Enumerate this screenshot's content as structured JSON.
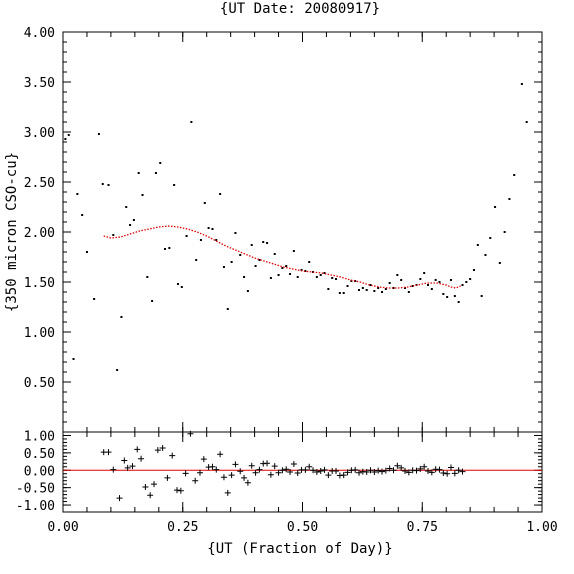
{
  "chart_data": {
    "title": "{UT Date: 20080917}",
    "xlabel": "{UT (Fraction of Day)}",
    "xlim": [
      0.0,
      1.0
    ],
    "x_tick_labels": [
      "0.00",
      "0.25",
      "0.50",
      "0.75",
      "1.00"
    ],
    "colors": {
      "points": "#000000",
      "fit": "#e00000",
      "zero_line": "#e00000",
      "axes": "#000000"
    },
    "panels": [
      {
        "name": "main",
        "type": "scatter",
        "ylabel": "{350 micron CSO-cu}",
        "ylim": [
          0.0,
          4.0
        ],
        "y_tick_labels": [
          "0.50",
          "1.00",
          "1.50",
          "2.00",
          "2.50",
          "3.00",
          "3.50",
          "4.00"
        ],
        "points": [
          [
            0.005,
            2.93
          ],
          [
            0.012,
            2.97
          ],
          [
            0.022,
            0.73
          ],
          [
            0.03,
            2.38
          ],
          [
            0.04,
            2.17
          ],
          [
            0.05,
            1.8
          ],
          [
            0.065,
            1.33
          ],
          [
            0.075,
            2.98
          ],
          [
            0.083,
            2.48
          ],
          [
            0.095,
            2.47
          ],
          [
            0.105,
            1.97
          ],
          [
            0.113,
            0.62
          ],
          [
            0.122,
            1.15
          ],
          [
            0.132,
            2.25
          ],
          [
            0.14,
            2.07
          ],
          [
            0.148,
            2.12
          ],
          [
            0.158,
            2.59
          ],
          [
            0.166,
            2.37
          ],
          [
            0.176,
            1.55
          ],
          [
            0.186,
            1.31
          ],
          [
            0.194,
            2.59
          ],
          [
            0.203,
            2.69
          ],
          [
            0.213,
            1.83
          ],
          [
            0.222,
            1.84
          ],
          [
            0.232,
            2.47
          ],
          [
            0.24,
            1.48
          ],
          [
            0.248,
            1.45
          ],
          [
            0.258,
            1.96
          ],
          [
            0.268,
            3.1
          ],
          [
            0.278,
            1.72
          ],
          [
            0.288,
            1.92
          ],
          [
            0.296,
            2.29
          ],
          [
            0.304,
            2.04
          ],
          [
            0.312,
            2.03
          ],
          [
            0.32,
            1.92
          ],
          [
            0.328,
            2.38
          ],
          [
            0.336,
            1.65
          ],
          [
            0.344,
            1.23
          ],
          [
            0.352,
            1.7
          ],
          [
            0.36,
            1.99
          ],
          [
            0.37,
            1.77
          ],
          [
            0.378,
            1.55
          ],
          [
            0.386,
            1.41
          ],
          [
            0.394,
            1.87
          ],
          [
            0.402,
            1.66
          ],
          [
            0.41,
            1.72
          ],
          [
            0.418,
            1.9
          ],
          [
            0.426,
            1.89
          ],
          [
            0.434,
            1.54
          ],
          [
            0.442,
            1.78
          ],
          [
            0.45,
            1.57
          ],
          [
            0.458,
            1.64
          ],
          [
            0.466,
            1.66
          ],
          [
            0.474,
            1.58
          ],
          [
            0.482,
            1.81
          ],
          [
            0.49,
            1.55
          ],
          [
            0.498,
            1.62
          ],
          [
            0.506,
            1.61
          ],
          [
            0.514,
            1.7
          ],
          [
            0.522,
            1.6
          ],
          [
            0.53,
            1.55
          ],
          [
            0.538,
            1.57
          ],
          [
            0.546,
            1.59
          ],
          [
            0.554,
            1.43
          ],
          [
            0.562,
            1.54
          ],
          [
            0.57,
            1.53
          ],
          [
            0.578,
            1.39
          ],
          [
            0.586,
            1.39
          ],
          [
            0.594,
            1.46
          ],
          [
            0.602,
            1.51
          ],
          [
            0.61,
            1.51
          ],
          [
            0.618,
            1.42
          ],
          [
            0.626,
            1.44
          ],
          [
            0.634,
            1.42
          ],
          [
            0.642,
            1.47
          ],
          [
            0.65,
            1.41
          ],
          [
            0.658,
            1.44
          ],
          [
            0.666,
            1.4
          ],
          [
            0.674,
            1.43
          ],
          [
            0.682,
            1.49
          ],
          [
            0.69,
            1.44
          ],
          [
            0.698,
            1.57
          ],
          [
            0.706,
            1.52
          ],
          [
            0.714,
            1.44
          ],
          [
            0.722,
            1.4
          ],
          [
            0.73,
            1.46
          ],
          [
            0.738,
            1.47
          ],
          [
            0.746,
            1.53
          ],
          [
            0.754,
            1.59
          ],
          [
            0.762,
            1.47
          ],
          [
            0.77,
            1.43
          ],
          [
            0.778,
            1.52
          ],
          [
            0.786,
            1.5
          ],
          [
            0.794,
            1.38
          ],
          [
            0.802,
            1.35
          ],
          [
            0.81,
            1.52
          ],
          [
            0.818,
            1.36
          ],
          [
            0.826,
            1.3
          ],
          [
            0.834,
            1.47
          ],
          [
            0.842,
            1.5
          ],
          [
            0.85,
            1.53
          ],
          [
            0.858,
            1.62
          ],
          [
            0.866,
            1.87
          ],
          [
            0.874,
            1.36
          ],
          [
            0.882,
            1.77
          ],
          [
            0.892,
            1.94
          ],
          [
            0.902,
            2.25
          ],
          [
            0.912,
            1.69
          ],
          [
            0.922,
            2.0
          ],
          [
            0.932,
            2.33
          ],
          [
            0.942,
            2.57
          ],
          [
            0.958,
            3.48
          ],
          [
            0.968,
            3.1
          ]
        ],
        "fit_curve": [
          [
            0.085,
            1.96
          ],
          [
            0.1,
            1.94
          ],
          [
            0.12,
            1.95
          ],
          [
            0.14,
            1.98
          ],
          [
            0.16,
            2.01
          ],
          [
            0.18,
            2.03
          ],
          [
            0.2,
            2.05
          ],
          [
            0.22,
            2.06
          ],
          [
            0.24,
            2.05
          ],
          [
            0.26,
            2.03
          ],
          [
            0.28,
            2.0
          ],
          [
            0.3,
            1.96
          ],
          [
            0.32,
            1.91
          ],
          [
            0.34,
            1.86
          ],
          [
            0.36,
            1.82
          ],
          [
            0.38,
            1.78
          ],
          [
            0.4,
            1.74
          ],
          [
            0.42,
            1.71
          ],
          [
            0.44,
            1.68
          ],
          [
            0.46,
            1.65
          ],
          [
            0.48,
            1.63
          ],
          [
            0.5,
            1.61
          ],
          [
            0.52,
            1.6
          ],
          [
            0.54,
            1.59
          ],
          [
            0.56,
            1.57
          ],
          [
            0.58,
            1.55
          ],
          [
            0.6,
            1.52
          ],
          [
            0.62,
            1.5
          ],
          [
            0.64,
            1.47
          ],
          [
            0.66,
            1.45
          ],
          [
            0.68,
            1.44
          ],
          [
            0.7,
            1.44
          ],
          [
            0.72,
            1.45
          ],
          [
            0.74,
            1.47
          ],
          [
            0.76,
            1.49
          ],
          [
            0.78,
            1.49
          ],
          [
            0.8,
            1.47
          ],
          [
            0.81,
            1.45
          ],
          [
            0.82,
            1.44
          ],
          [
            0.83,
            1.46
          ]
        ]
      },
      {
        "name": "residuals",
        "type": "scatter",
        "ylim": [
          -1.2,
          1.1
        ],
        "y_tick_labels": [
          "1.00",
          "0.50",
          "0.00",
          "-0.50",
          "-1.00"
        ],
        "zero_line": 0.0,
        "points": [
          [
            0.085,
            0.52
          ],
          [
            0.095,
            0.52
          ],
          [
            0.105,
            0.02
          ],
          [
            0.118,
            -0.8
          ],
          [
            0.128,
            0.28
          ],
          [
            0.135,
            0.07
          ],
          [
            0.145,
            0.12
          ],
          [
            0.155,
            0.6
          ],
          [
            0.163,
            0.33
          ],
          [
            0.172,
            -0.48
          ],
          [
            0.182,
            -0.72
          ],
          [
            0.19,
            -0.4
          ],
          [
            0.198,
            0.58
          ],
          [
            0.208,
            0.64
          ],
          [
            0.218,
            -0.22
          ],
          [
            0.228,
            0.42
          ],
          [
            0.238,
            -0.57
          ],
          [
            0.246,
            -0.59
          ],
          [
            0.256,
            -0.09
          ],
          [
            0.266,
            1.05
          ],
          [
            0.276,
            -0.3
          ],
          [
            0.286,
            -0.07
          ],
          [
            0.294,
            0.32
          ],
          [
            0.304,
            0.09
          ],
          [
            0.312,
            0.1
          ],
          [
            0.32,
            0.02
          ],
          [
            0.328,
            0.46
          ],
          [
            0.336,
            -0.2
          ],
          [
            0.344,
            -0.65
          ],
          [
            0.352,
            -0.14
          ],
          [
            0.36,
            0.17
          ],
          [
            0.37,
            -0.03
          ],
          [
            0.378,
            -0.22
          ],
          [
            0.386,
            -0.36
          ],
          [
            0.394,
            0.13
          ],
          [
            0.402,
            -0.07
          ],
          [
            0.41,
            0.02
          ],
          [
            0.418,
            0.19
          ],
          [
            0.426,
            0.2
          ],
          [
            0.434,
            -0.13
          ],
          [
            0.442,
            0.12
          ],
          [
            0.45,
            -0.07
          ],
          [
            0.458,
            0.0
          ],
          [
            0.466,
            0.03
          ],
          [
            0.474,
            -0.05
          ],
          [
            0.482,
            0.18
          ],
          [
            0.49,
            -0.08
          ],
          [
            0.498,
            0.01
          ],
          [
            0.506,
            0.01
          ],
          [
            0.514,
            0.1
          ],
          [
            0.522,
            0.0
          ],
          [
            0.53,
            -0.05
          ],
          [
            0.538,
            -0.02
          ],
          [
            0.546,
            0.01
          ],
          [
            0.554,
            -0.14
          ],
          [
            0.562,
            -0.02
          ],
          [
            0.57,
            -0.02
          ],
          [
            0.578,
            -0.15
          ],
          [
            0.586,
            -0.14
          ],
          [
            0.594,
            -0.06
          ],
          [
            0.602,
            0.0
          ],
          [
            0.61,
            0.01
          ],
          [
            0.618,
            -0.07
          ],
          [
            0.626,
            -0.04
          ],
          [
            0.634,
            -0.05
          ],
          [
            0.642,
            0.0
          ],
          [
            0.65,
            -0.05
          ],
          [
            0.658,
            -0.01
          ],
          [
            0.666,
            -0.04
          ],
          [
            0.674,
            -0.01
          ],
          [
            0.682,
            0.05
          ],
          [
            0.69,
            0.0
          ],
          [
            0.698,
            0.13
          ],
          [
            0.706,
            0.07
          ],
          [
            0.714,
            -0.02
          ],
          [
            0.722,
            -0.06
          ],
          [
            0.73,
            0.0
          ],
          [
            0.738,
            -0.01
          ],
          [
            0.746,
            0.04
          ],
          [
            0.754,
            0.1
          ],
          [
            0.762,
            -0.02
          ],
          [
            0.77,
            -0.06
          ],
          [
            0.778,
            0.03
          ],
          [
            0.786,
            0.02
          ],
          [
            0.794,
            -0.08
          ],
          [
            0.802,
            -0.1
          ],
          [
            0.81,
            0.08
          ],
          [
            0.818,
            -0.09
          ],
          [
            0.826,
            0.0
          ],
          [
            0.834,
            -0.04
          ]
        ]
      }
    ]
  }
}
